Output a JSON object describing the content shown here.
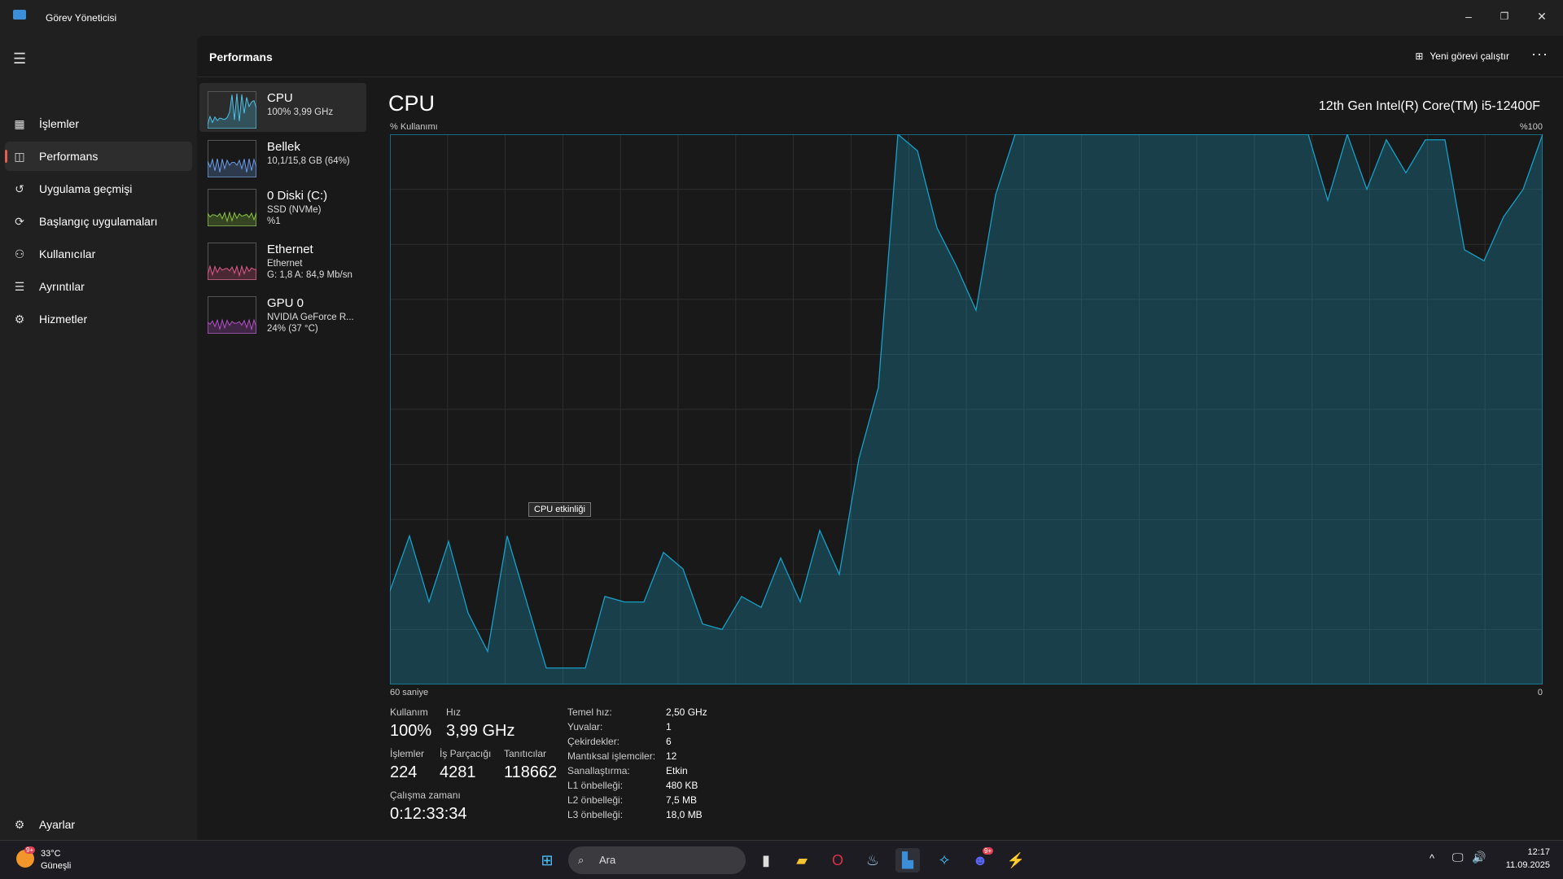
{
  "window": {
    "title": "Görev Yöneticisi",
    "min": "–",
    "max": "❐",
    "close": "✕"
  },
  "sidebar": {
    "items": [
      {
        "label": "İşlemler",
        "icon": "▦"
      },
      {
        "label": "Performans",
        "icon": "◫"
      },
      {
        "label": "Uygulama geçmişi",
        "icon": "↺"
      },
      {
        "label": "Başlangıç uygulamaları",
        "icon": "⟳"
      },
      {
        "label": "Kullanıcılar",
        "icon": "⚇"
      },
      {
        "label": "Ayrıntılar",
        "icon": "☰"
      },
      {
        "label": "Hizmetler",
        "icon": "⚙"
      }
    ],
    "settings": "Ayarlar",
    "settings_icon": "⚙"
  },
  "header": {
    "title": "Performans",
    "run_task": "Yeni görevi çalıştır",
    "more": "···"
  },
  "devices": [
    {
      "name": "CPU",
      "lines": [
        "100%  3,99 GHz"
      ],
      "color": "#4cc2e8"
    },
    {
      "name": "Bellek",
      "lines": [
        "10,1/15,8 GB (64%)"
      ],
      "color": "#6b9be8"
    },
    {
      "name": "0 Diski (C:)",
      "lines": [
        "SSD (NVMe)",
        "%1"
      ],
      "color": "#8dc63f"
    },
    {
      "name": "Ethernet",
      "lines": [
        "Ethernet",
        "G: 1,8 A: 84,9 Mb/sn"
      ],
      "color": "#e05a8a"
    },
    {
      "name": "GPU 0",
      "lines": [
        "NVIDIA GeForce R...",
        "24% (37 °C)"
      ],
      "color": "#b250c8"
    }
  ],
  "main": {
    "title": "CPU",
    "model": "12th Gen Intel(R) Core(TM) i5-12400F",
    "tooltip": "CPU etkinliği"
  },
  "chart_data": {
    "type": "area",
    "title": "CPU",
    "ylabel": "% Kullanımı",
    "ymax_label": "%100",
    "xlabel_left": "60 saniye",
    "xlabel_right": "0",
    "ylim": [
      0,
      100
    ],
    "color": "#17a0c8",
    "values": [
      17,
      27,
      15,
      26,
      13,
      6,
      27,
      15,
      3,
      3,
      3,
      16,
      15,
      15,
      24,
      21,
      11,
      10,
      16,
      14,
      23,
      15,
      28,
      20,
      41,
      54,
      100,
      97,
      83,
      76,
      68,
      89,
      100,
      100,
      100,
      100,
      100,
      100,
      100,
      100,
      100,
      100,
      100,
      100,
      100,
      100,
      100,
      100,
      88,
      100,
      90,
      99,
      93,
      99,
      99,
      79,
      77,
      85,
      90,
      100
    ]
  },
  "stats": {
    "usage_label": "Kullanım",
    "usage": "100%",
    "speed_label": "Hız",
    "speed": "3,99 GHz",
    "proc_label": "İşlemler",
    "proc": "224",
    "threads_label": "İş Parçacığı",
    "threads": "4281",
    "handles_label": "Tanıtıcılar",
    "handles": "118662",
    "uptime_label": "Çalışma zamanı",
    "uptime": "0:12:33:34"
  },
  "specs": [
    [
      "Temel hız:",
      "2,50 GHz"
    ],
    [
      "Yuvalar:",
      "1"
    ],
    [
      "Çekirdekler:",
      "6"
    ],
    [
      "Mantıksal işlemciler:",
      "12"
    ],
    [
      "Sanallaştırma:",
      "Etkin"
    ],
    [
      "L1 önbelleği:",
      "480 KB"
    ],
    [
      "L2 önbelleği:",
      "7,5 MB"
    ],
    [
      "L3 önbelleği:",
      "18,0 MB"
    ]
  ],
  "taskbar": {
    "weather_temp": "33°C",
    "weather_desc": "Güneşli",
    "weather_badge": "9+",
    "search": "Ara",
    "time": "12:17",
    "date": "11.09.2025",
    "tray_chevron": "^",
    "discord_badge": "9+"
  }
}
